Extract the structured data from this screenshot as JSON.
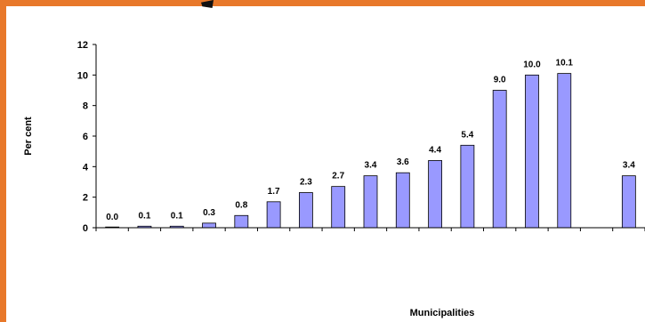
{
  "chart_data": {
    "type": "bar",
    "title": "",
    "xlabel": "Municipalities",
    "ylabel": "Per cent",
    "ylim": [
      0,
      12
    ],
    "yticks": [
      0,
      2,
      4,
      6,
      8,
      10,
      12
    ],
    "grid": false,
    "legend": "none",
    "bar_color": "#9999ff",
    "bar_edge_color": "#000000",
    "categories": [
      "",
      "",
      "",
      "",
      "",
      "",
      "",
      "",
      "",
      "",
      "",
      "",
      "",
      "",
      "",
      "",
      ""
    ],
    "values": [
      0.0,
      0.1,
      0.1,
      0.3,
      0.8,
      1.7,
      2.3,
      2.7,
      3.4,
      3.6,
      4.4,
      5.4,
      9.0,
      10.0,
      10.1,
      null,
      3.4
    ],
    "value_labels": [
      "0.0",
      "0.1",
      "0.1",
      "0.3",
      "0.8",
      "1.7",
      "2.3",
      "2.7",
      "3.4",
      "3.6",
      "4.4",
      "5.4",
      "9.0",
      "10.0",
      "10.1",
      "",
      "3.4"
    ]
  },
  "frame_color": "#e8782a"
}
